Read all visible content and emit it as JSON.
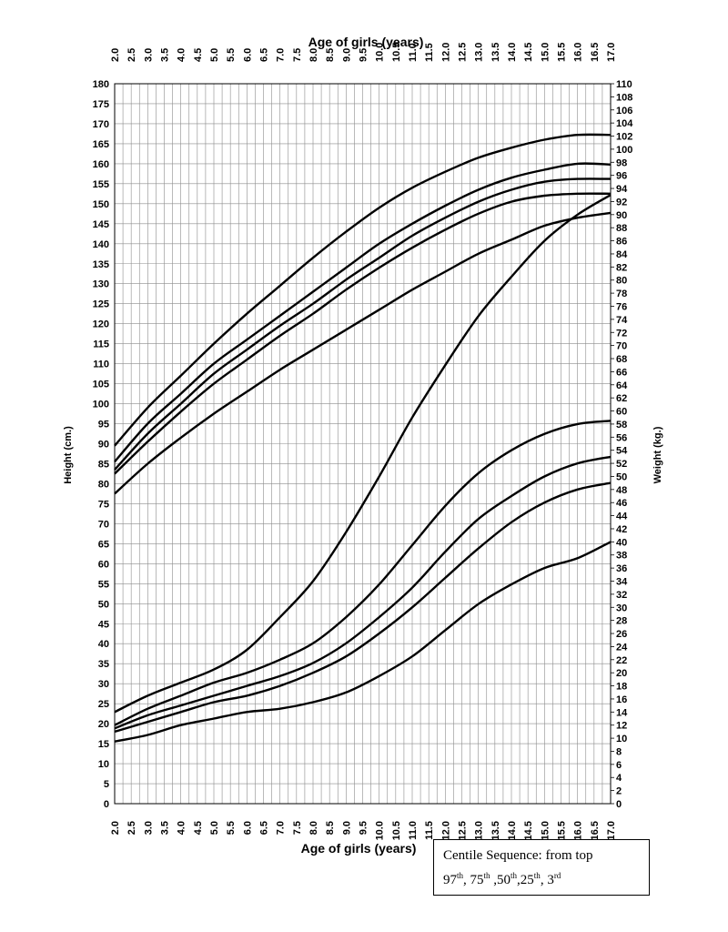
{
  "chart_data": {
    "type": "line",
    "title": "Age of girls (years)",
    "xlabel": "Age of girls (years)",
    "ylabel_left": "Height (cm.)",
    "ylabel_right": "Weight (kg.)",
    "xlim": [
      2.0,
      17.0
    ],
    "ylim_left": [
      0,
      180
    ],
    "ylim_right": [
      0,
      110
    ],
    "x_ticks": [
      "2.0",
      "2.5",
      "3.0",
      "3.5",
      "4.0",
      "4.5",
      "5.0",
      "5.5",
      "6.0",
      "6.5",
      "7.0",
      "7.5",
      "8.0",
      "8.5",
      "9.0",
      "9.5",
      "10.0",
      "10.5",
      "11.0",
      "11.5",
      "12.0",
      "12.5",
      "13.0",
      "13.5",
      "14.0",
      "14.5",
      "15.0",
      "15.5",
      "16.0",
      "16.5",
      "17.0"
    ],
    "y_left_ticks": [
      "0",
      "5",
      "10",
      "15",
      "20",
      "25",
      "30",
      "35",
      "40",
      "45",
      "50",
      "55",
      "60",
      "65",
      "70",
      "75",
      "80",
      "85",
      "90",
      "95",
      "100",
      "105",
      "110",
      "115",
      "120",
      "125",
      "130",
      "135",
      "140",
      "145",
      "150",
      "155",
      "160",
      "165",
      "170",
      "175",
      "180"
    ],
    "y_right_ticks": [
      "0",
      "2",
      "4",
      "6",
      "8",
      "10",
      "12",
      "14",
      "16",
      "18",
      "20",
      "22",
      "24",
      "26",
      "28",
      "30",
      "32",
      "34",
      "36",
      "38",
      "40",
      "42",
      "44",
      "46",
      "48",
      "50",
      "52",
      "54",
      "56",
      "58",
      "60",
      "62",
      "64",
      "66",
      "68",
      "70",
      "72",
      "74",
      "76",
      "78",
      "80",
      "82",
      "84",
      "86",
      "88",
      "90",
      "92",
      "94",
      "96",
      "98",
      "100",
      "102",
      "104",
      "106",
      "108",
      "110"
    ],
    "grid": true,
    "x": [
      2.0,
      3.0,
      4.0,
      5.0,
      6.0,
      7.0,
      8.0,
      9.0,
      10.0,
      11.0,
      12.0,
      13.0,
      14.0,
      15.0,
      16.0,
      17.0
    ],
    "height_series": [
      {
        "centile": "97th",
        "values": [
          89.5,
          99.0,
          107.0,
          115.0,
          122.5,
          129.5,
          136.5,
          143.0,
          149.0,
          154.0,
          158.0,
          161.5,
          164.0,
          166.0,
          167.2,
          167.2
        ]
      },
      {
        "centile": "75th",
        "values": [
          85.5,
          95.0,
          102.5,
          110.0,
          116.0,
          122.0,
          128.0,
          134.0,
          140.0,
          145.0,
          149.5,
          153.5,
          156.5,
          158.5,
          160.0,
          159.8
        ]
      },
      {
        "centile": "50th",
        "values": [
          83.5,
          92.5,
          100.0,
          107.5,
          113.5,
          119.5,
          125.0,
          131.0,
          136.5,
          142.0,
          146.5,
          150.5,
          153.5,
          155.5,
          156.2,
          156.2
        ]
      },
      {
        "centile": "25th",
        "values": [
          82.5,
          90.5,
          98.0,
          105.0,
          111.0,
          117.0,
          122.5,
          128.5,
          134.0,
          139.0,
          143.5,
          147.5,
          150.5,
          152.0,
          152.5,
          152.5
        ]
      },
      {
        "centile": "3rd",
        "values": [
          77.5,
          85.0,
          91.5,
          97.5,
          103.0,
          108.5,
          113.5,
          118.5,
          123.5,
          128.5,
          133.0,
          137.5,
          141.0,
          144.5,
          146.5,
          147.7
        ]
      }
    ],
    "weight_series": [
      {
        "centile": "97th",
        "values": [
          14.0,
          16.5,
          18.5,
          20.5,
          23.5,
          28.5,
          34.0,
          41.5,
          50.0,
          59.0,
          67.0,
          74.5,
          80.5,
          86.0,
          90.0,
          93.0
        ]
      },
      {
        "centile": "75th",
        "values": [
          12.0,
          14.5,
          16.5,
          18.5,
          20.0,
          22.0,
          24.5,
          28.5,
          33.5,
          39.5,
          45.5,
          50.5,
          54.0,
          56.5,
          58.0,
          58.5
        ]
      },
      {
        "centile": "50th",
        "values": [
          11.5,
          13.5,
          15.0,
          16.5,
          18.0,
          19.5,
          21.5,
          24.5,
          28.5,
          33.0,
          38.5,
          43.5,
          47.0,
          50.0,
          52.0,
          53.0
        ]
      },
      {
        "centile": "25th",
        "values": [
          11.0,
          12.5,
          14.0,
          15.5,
          16.5,
          18.0,
          20.0,
          22.5,
          26.0,
          30.0,
          34.5,
          39.0,
          43.0,
          46.0,
          48.0,
          49.0
        ]
      },
      {
        "centile": "3rd",
        "values": [
          9.5,
          10.5,
          12.0,
          13.0,
          14.0,
          14.5,
          15.5,
          17.0,
          19.5,
          22.5,
          26.5,
          30.5,
          33.5,
          36.0,
          37.5,
          40.0
        ]
      }
    ]
  },
  "legend": {
    "line1": "Centile Sequence: from top",
    "c1": "97",
    "s1": "th",
    "sep1": ", ",
    "c2": "75",
    "s2": "th",
    "sep2": " ,",
    "c3": "50",
    "s3": "th",
    "sep3": ",",
    "c4": "25",
    "s4": "th",
    "sep4": ", ",
    "c5": "3",
    "s5": "rd"
  },
  "colors": {
    "grid": "#8c8c8c",
    "curve": "#000000",
    "axis": "#000000",
    "background": "#ffffff"
  }
}
